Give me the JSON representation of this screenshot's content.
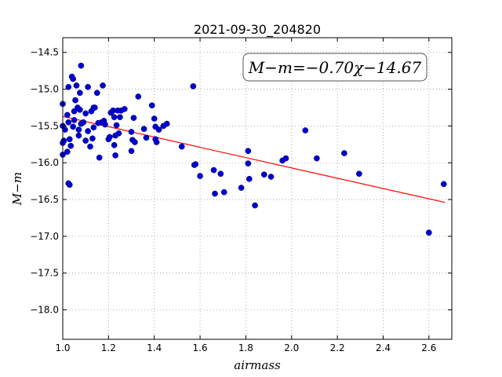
{
  "chart_data": {
    "type": "scatter",
    "title": "2021-09-30_204820",
    "xlabel": "airmass",
    "ylabel": "M−m",
    "xlim": [
      1.0,
      2.7
    ],
    "ylim": [
      -18.4,
      -14.3
    ],
    "y_inverted": true,
    "grid": true,
    "x_ticks": [
      1.0,
      1.2,
      1.4,
      1.6,
      1.8,
      2.0,
      2.2,
      2.4,
      2.6
    ],
    "x_tick_labels": [
      "1.0",
      "1.2",
      "1.4",
      "1.6",
      "1.8",
      "2.0",
      "2.2",
      "2.4",
      "2.6"
    ],
    "y_ticks": [
      -14.5,
      -15.0,
      -15.5,
      -16.0,
      -16.5,
      -17.0,
      -17.5,
      -18.0
    ],
    "y_tick_labels": [
      "−14.5",
      "−15.0",
      "−15.5",
      "−16.0",
      "−16.5",
      "−17.0",
      "−17.5",
      "−18.0"
    ],
    "fit": {
      "label": "M−m=−0.70χ−14.67",
      "slope": -0.7,
      "intercept": -14.67,
      "x_range": [
        1.0,
        2.67
      ],
      "color": "#ff0000"
    },
    "marker_color": "#0000cc",
    "points": [
      [
        1.0,
        -15.2
      ],
      [
        1.0,
        -15.5
      ],
      [
        1.0,
        -15.73
      ],
      [
        1.0,
        -15.89
      ],
      [
        1.005,
        -15.7
      ],
      [
        1.01,
        -15.55
      ],
      [
        1.02,
        -15.85
      ],
      [
        1.02,
        -15.35
      ],
      [
        1.025,
        -14.97
      ],
      [
        1.025,
        -15.45
      ],
      [
        1.025,
        -16.28
      ],
      [
        1.03,
        -16.3
      ],
      [
        1.03,
        -15.68
      ],
      [
        1.035,
        -15.77
      ],
      [
        1.04,
        -14.83
      ],
      [
        1.045,
        -14.86
      ],
      [
        1.045,
        -15.51
      ],
      [
        1.05,
        -15.42
      ],
      [
        1.05,
        -15.3
      ],
      [
        1.055,
        -15.15
      ],
      [
        1.06,
        -14.95
      ],
      [
        1.065,
        -15.25
      ],
      [
        1.07,
        -15.55
      ],
      [
        1.07,
        -15.63
      ],
      [
        1.075,
        -15.05
      ],
      [
        1.075,
        -15.28
      ],
      [
        1.08,
        -14.68
      ],
      [
        1.08,
        -15.47
      ],
      [
        1.09,
        -15.45
      ],
      [
        1.1,
        -15.33
      ],
      [
        1.1,
        -15.7
      ],
      [
        1.11,
        -14.97
      ],
      [
        1.11,
        -15.57
      ],
      [
        1.12,
        -15.78
      ],
      [
        1.125,
        -15.3
      ],
      [
        1.13,
        -15.67
      ],
      [
        1.135,
        -15.25
      ],
      [
        1.135,
        -15.52
      ],
      [
        1.14,
        -15.25
      ],
      [
        1.15,
        -15.05
      ],
      [
        1.155,
        -15.46
      ],
      [
        1.16,
        -15.93
      ],
      [
        1.17,
        -15.45
      ],
      [
        1.175,
        -14.95
      ],
      [
        1.18,
        -15.43
      ],
      [
        1.185,
        -15.48
      ],
      [
        1.2,
        -15.68
      ],
      [
        1.205,
        -15.65
      ],
      [
        1.21,
        -15.32
      ],
      [
        1.22,
        -15.29
      ],
      [
        1.225,
        -15.38
      ],
      [
        1.225,
        -15.76
      ],
      [
        1.23,
        -15.63
      ],
      [
        1.23,
        -15.9
      ],
      [
        1.235,
        -15.49
      ],
      [
        1.24,
        -15.29
      ],
      [
        1.245,
        -15.6
      ],
      [
        1.25,
        -15.38
      ],
      [
        1.255,
        -15.29
      ],
      [
        1.27,
        -15.27
      ],
      [
        1.3,
        -15.58
      ],
      [
        1.3,
        -15.84
      ],
      [
        1.305,
        -15.69
      ],
      [
        1.31,
        -15.39
      ],
      [
        1.315,
        -15.72
      ],
      [
        1.33,
        -15.1
      ],
      [
        1.355,
        -15.54
      ],
      [
        1.365,
        -15.66
      ],
      [
        1.39,
        -15.22
      ],
      [
        1.4,
        -15.4
      ],
      [
        1.405,
        -15.51
      ],
      [
        1.405,
        -15.68
      ],
      [
        1.41,
        -15.72
      ],
      [
        1.42,
        -15.55
      ],
      [
        1.44,
        -15.5
      ],
      [
        1.455,
        -15.47
      ],
      [
        1.52,
        -15.78
      ],
      [
        1.57,
        -14.96
      ],
      [
        1.575,
        -16.03
      ],
      [
        1.58,
        -16.02
      ],
      [
        1.6,
        -16.18
      ],
      [
        1.66,
        -16.1
      ],
      [
        1.665,
        -16.42
      ],
      [
        1.69,
        -16.15
      ],
      [
        1.705,
        -16.4
      ],
      [
        1.78,
        -16.34
      ],
      [
        1.81,
        -15.84
      ],
      [
        1.81,
        -16.01
      ],
      [
        1.815,
        -16.22
      ],
      [
        1.84,
        -16.58
      ],
      [
        1.88,
        -16.16
      ],
      [
        1.91,
        -16.19
      ],
      [
        1.96,
        -15.97
      ],
      [
        1.975,
        -15.94
      ],
      [
        2.06,
        -15.56
      ],
      [
        2.11,
        -15.94
      ],
      [
        2.23,
        -15.87
      ],
      [
        2.295,
        -16.15
      ],
      [
        2.6,
        -16.95
      ],
      [
        2.665,
        -16.29
      ]
    ]
  }
}
